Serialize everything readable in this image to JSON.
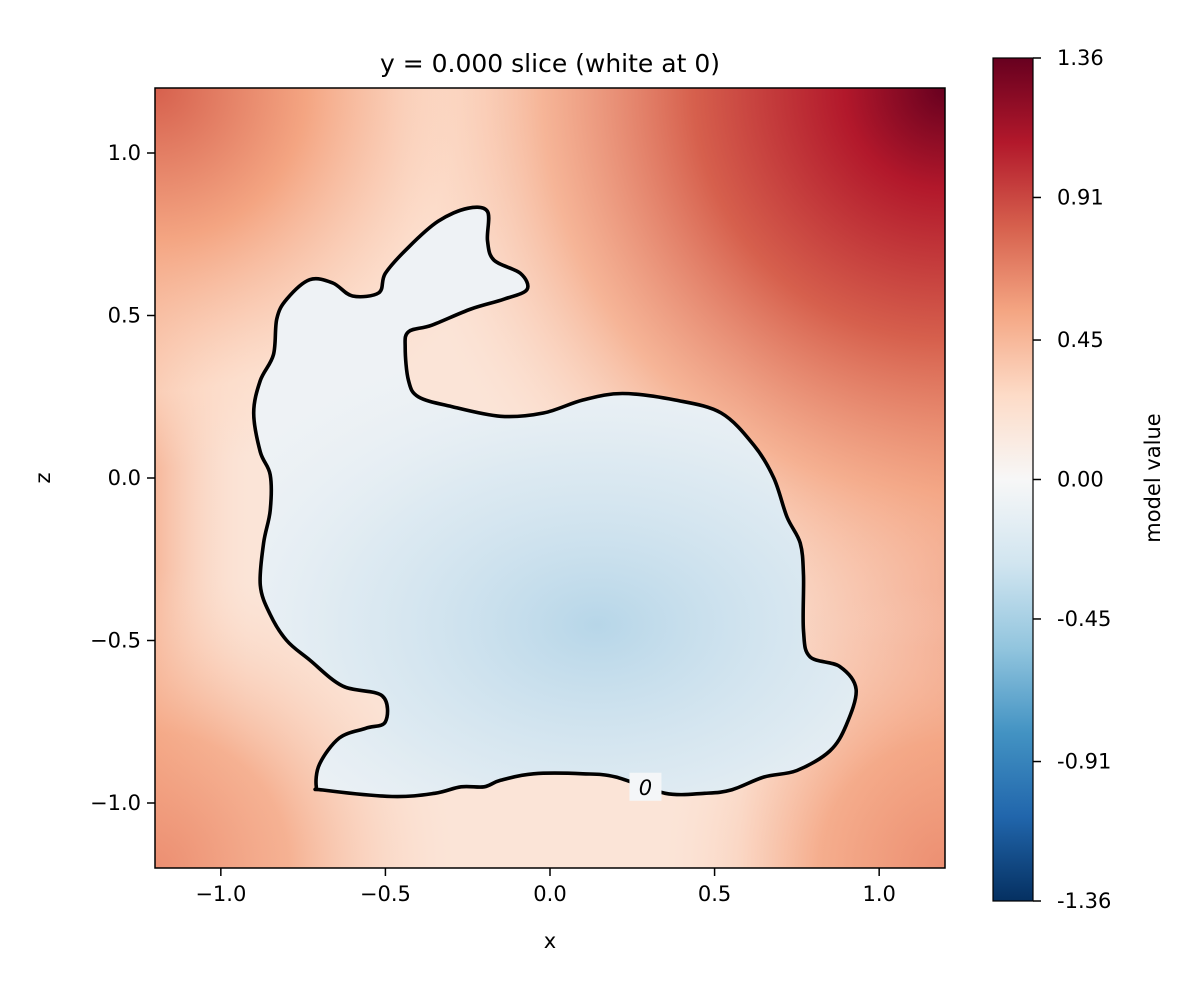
{
  "chart_data": {
    "type": "heatmap",
    "title": "y = 0.000 slice (white at 0)",
    "xlabel": "x",
    "ylabel": "z",
    "xlim": [
      -1.2,
      1.2
    ],
    "ylim": [
      -1.2,
      1.2
    ],
    "x_ticks": [
      -1.0,
      -0.5,
      0.0,
      0.5,
      1.0
    ],
    "x_tick_labels": [
      "−1.0",
      "−0.5",
      "0.0",
      "0.5",
      "1.0"
    ],
    "y_ticks": [
      1.0,
      0.5,
      0.0,
      -0.5,
      -1.0
    ],
    "y_tick_labels": [
      "1.0",
      "0.5",
      "0.0",
      "−0.5",
      "−1.0"
    ],
    "colormap": "RdBu_r",
    "colors": {
      "low": "#053061",
      "mid": "#f7f7f7",
      "high": "#67001f"
    },
    "grid": false,
    "colorbar": {
      "label": "model value",
      "range": [
        -1.36,
        1.36
      ],
      "ticks": [
        1.36,
        0.91,
        0.45,
        0.0,
        -0.45,
        -0.91,
        -1.36
      ],
      "tick_labels": [
        "1.36",
        "0.91",
        "0.45",
        "0.00",
        "-0.45",
        "-0.91",
        "-1.36"
      ]
    },
    "contour": {
      "level": 0,
      "label": "0",
      "label_at": [
        0.29,
        -0.95
      ],
      "points": [
        [
          -0.69,
          -0.96
        ],
        [
          -0.48,
          -0.98
        ],
        [
          -0.35,
          -0.97
        ],
        [
          -0.27,
          -0.95
        ],
        [
          -0.2,
          -0.95
        ],
        [
          -0.15,
          -0.93
        ],
        [
          -0.05,
          -0.91
        ],
        [
          0.1,
          -0.91
        ],
        [
          0.2,
          -0.92
        ],
        [
          0.35,
          -0.97
        ],
        [
          0.47,
          -0.97
        ],
        [
          0.55,
          -0.96
        ],
        [
          0.65,
          -0.92
        ],
        [
          0.75,
          -0.9
        ],
        [
          0.85,
          -0.84
        ],
        [
          0.9,
          -0.76
        ],
        [
          0.93,
          -0.65
        ],
        [
          0.88,
          -0.58
        ],
        [
          0.79,
          -0.55
        ],
        [
          0.77,
          -0.47
        ],
        [
          0.77,
          -0.3
        ],
        [
          0.76,
          -0.2
        ],
        [
          0.72,
          -0.12
        ],
        [
          0.68,
          0.0
        ],
        [
          0.62,
          0.1
        ],
        [
          0.52,
          0.2
        ],
        [
          0.38,
          0.24
        ],
        [
          0.22,
          0.26
        ],
        [
          0.1,
          0.24
        ],
        [
          -0.02,
          0.2
        ],
        [
          -0.15,
          0.19
        ],
        [
          -0.3,
          0.22
        ],
        [
          -0.4,
          0.25
        ],
        [
          -0.43,
          0.3
        ],
        [
          -0.44,
          0.4
        ],
        [
          -0.43,
          0.45
        ],
        [
          -0.36,
          0.47
        ],
        [
          -0.24,
          0.52
        ],
        [
          -0.14,
          0.55
        ],
        [
          -0.07,
          0.58
        ],
        [
          -0.09,
          0.63
        ],
        [
          -0.17,
          0.67
        ],
        [
          -0.19,
          0.73
        ],
        [
          -0.19,
          0.82
        ],
        [
          -0.25,
          0.83
        ],
        [
          -0.34,
          0.79
        ],
        [
          -0.43,
          0.71
        ],
        [
          -0.5,
          0.63
        ],
        [
          -0.52,
          0.57
        ],
        [
          -0.6,
          0.56
        ],
        [
          -0.66,
          0.6
        ],
        [
          -0.73,
          0.61
        ],
        [
          -0.8,
          0.55
        ],
        [
          -0.83,
          0.49
        ],
        [
          -0.84,
          0.38
        ],
        [
          -0.88,
          0.3
        ],
        [
          -0.9,
          0.2
        ],
        [
          -0.88,
          0.08
        ],
        [
          -0.85,
          0.01
        ],
        [
          -0.85,
          -0.1
        ],
        [
          -0.87,
          -0.2
        ],
        [
          -0.88,
          -0.33
        ],
        [
          -0.85,
          -0.42
        ],
        [
          -0.8,
          -0.5
        ],
        [
          -0.73,
          -0.56
        ],
        [
          -0.63,
          -0.64
        ],
        [
          -0.51,
          -0.67
        ],
        [
          -0.5,
          -0.75
        ],
        [
          -0.56,
          -0.77
        ],
        [
          -0.64,
          -0.8
        ],
        [
          -0.7,
          -0.88
        ],
        [
          -0.71,
          -0.95
        ]
      ]
    }
  }
}
